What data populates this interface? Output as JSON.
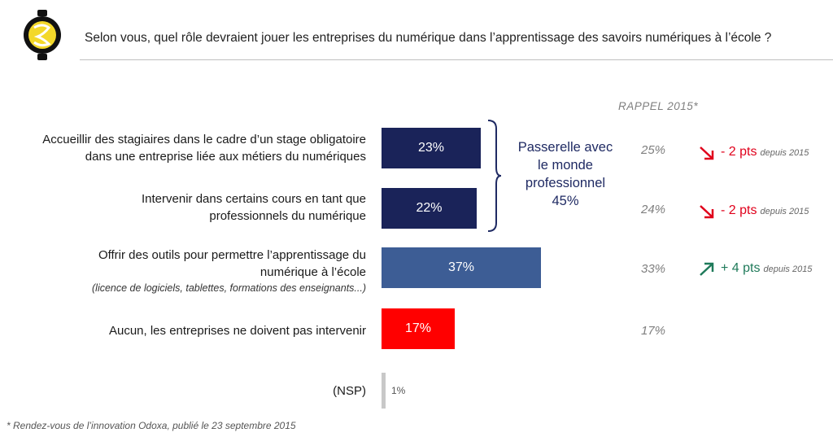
{
  "question": "Selon vous, quel rôle devraient jouer les entreprises du numérique dans l’apprentissage des savoirs numériques à l’école ?",
  "rappel_title": "RAPPEL 2015*",
  "bracket": {
    "lines": [
      "Passerelle avec",
      "le monde",
      "professionnel",
      "45%"
    ]
  },
  "rows": [
    {
      "label_lines": [
        "Accueillir des stagiaires dans le cadre d’un stage obligatoire",
        "dans une entreprise liée aux métiers du numériques"
      ],
      "value_label": "23%",
      "rappel": "25%",
      "trend": "- 2 pts",
      "trend_since": "depuis 2015"
    },
    {
      "label_lines": [
        "Intervenir dans certains cours en tant que",
        "professionnels du numérique"
      ],
      "value_label": "22%",
      "rappel": "24%",
      "trend": "- 2 pts",
      "trend_since": "depuis 2015"
    },
    {
      "label_lines": [
        "Offrir des outils pour permettre l’apprentissage du",
        "numérique à l’école"
      ],
      "note": "(licence de logiciels, tablettes, formations des enseignants...)",
      "value_label": "37%",
      "rappel": "33%",
      "trend": "+ 4 pts",
      "trend_since": "depuis 2015"
    },
    {
      "label_lines": [
        "Aucun, les entreprises ne doivent pas intervenir"
      ],
      "value_label": "17%",
      "rappel": "17%"
    },
    {
      "label_lines": [
        "(NSP)"
      ],
      "value_label": "1%"
    }
  ],
  "colors": {
    "dark_navy": "#1a2359",
    "steel_blue": "#3d5d95",
    "red": "#ff0000",
    "nsp_grey": "#c8c8c8",
    "trend_down": "#e0001b",
    "trend_up": "#1f7a5a"
  },
  "chart_data": {
    "type": "bar",
    "orientation": "horizontal",
    "categories": [
      "Accueillir des stagiaires dans le cadre d’un stage obligatoire dans une entreprise liée aux métiers du numériques",
      "Intervenir dans certains cours en tant que professionnels du numérique",
      "Offrir des outils pour permettre l’apprentissage du numérique à l’école",
      "Aucun, les entreprises ne doivent pas intervenir",
      "(NSP)"
    ],
    "values": [
      23,
      22,
      37,
      17,
      1
    ],
    "rappel_2015": [
      25,
      24,
      33,
      17,
      null
    ],
    "bar_colors": [
      "#1a2359",
      "#1a2359",
      "#3d5d95",
      "#ff0000",
      "#c8c8c8"
    ],
    "xlim": [
      0,
      100
    ],
    "grid": false,
    "legend": "none"
  },
  "footnote": "* Rendez-vous de l’innovation Odoxa, publié le 23 septembre 2015"
}
